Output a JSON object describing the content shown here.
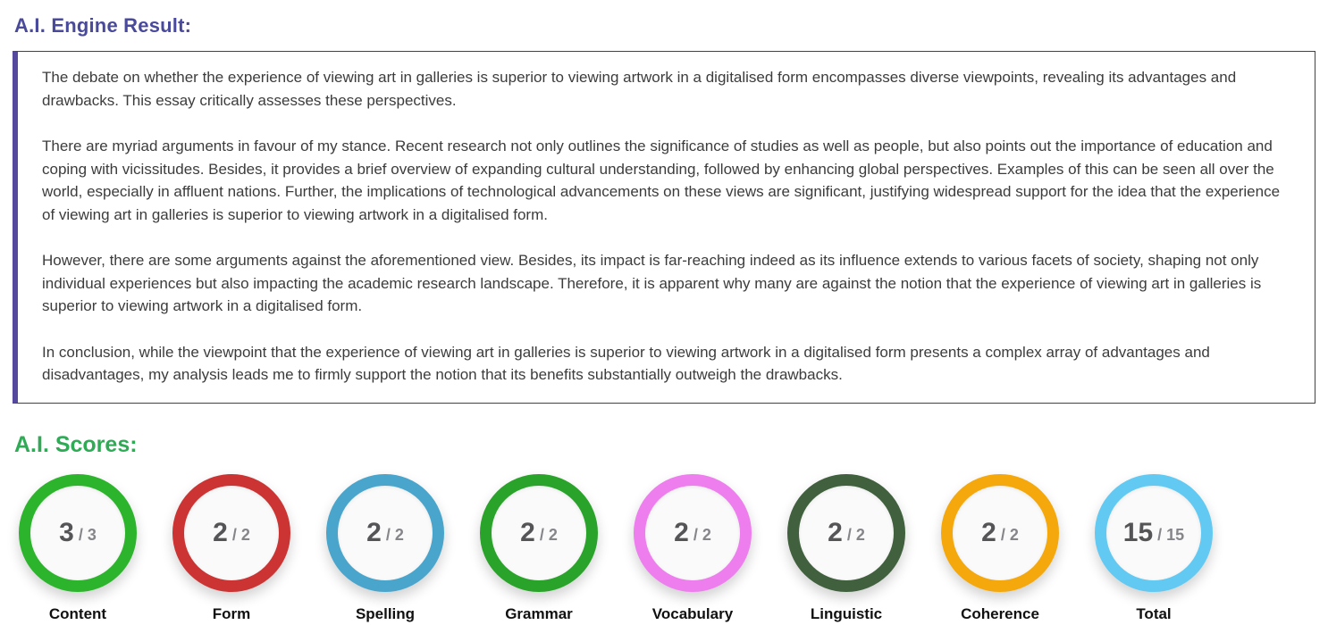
{
  "page": {
    "result_title": "A.I. Engine Result:",
    "scores_title": "A.I. Scores:"
  },
  "essay": {
    "paragraphs": [
      "The debate on whether the experience of viewing art in galleries is superior to viewing artwork in a digitalised form encompasses diverse viewpoints, revealing its advantages and drawbacks. This essay critically assesses these perspectives.",
      "There are myriad arguments in favour of my stance. Recent research not only outlines the significance of studies as well as people, but also points out the importance of education and coping with vicissitudes. Besides, it provides a brief overview of expanding cultural understanding, followed by enhancing global perspectives. Examples of this can be seen all over the world, especially in affluent nations. Further, the implications of technological advancements on these views are significant, justifying widespread support for the idea that the experience of viewing art in galleries is superior to viewing artwork in a digitalised form.",
      "However, there are some arguments against the aforementioned view. Besides, its impact is far-reaching indeed as its influence extends to various facets of society, shaping not only individual experiences but also impacting the academic research landscape. Therefore, it is apparent why many are against the notion that the experience of viewing art in galleries is superior to viewing artwork in a digitalised form.",
      "In conclusion, while the viewpoint that the experience of viewing art in galleries is superior to viewing artwork in a digitalised form presents a complex array of advantages and disadvantages, my analysis leads me to firmly support the notion that its benefits substantially outweigh the drawbacks."
    ]
  },
  "scores": {
    "divider": "/",
    "items": [
      {
        "label": "Content",
        "value": "3",
        "max": "3",
        "color": "#2cb52c"
      },
      {
        "label": "Form",
        "value": "2",
        "max": "2",
        "color": "#cc3434"
      },
      {
        "label": "Spelling",
        "value": "2",
        "max": "2",
        "color": "#4aa5cc"
      },
      {
        "label": "Grammar",
        "value": "2",
        "max": "2",
        "color": "#2aa32a"
      },
      {
        "label": "Vocabulary",
        "value": "2",
        "max": "2",
        "color": "#ee7eee"
      },
      {
        "label": "Linguistic",
        "value": "2",
        "max": "2",
        "color": "#40603e"
      },
      {
        "label": "Coherence",
        "value": "2",
        "max": "2",
        "color": "#f5a80c"
      },
      {
        "label": "Total",
        "value": "15",
        "max": "15",
        "color": "#62c9f2"
      }
    ]
  },
  "colors": {
    "result_title": "#4a4a9d",
    "scores_title": "#2fab55",
    "box_left_border": "#55499e",
    "box_border": "#3f3f5a"
  }
}
